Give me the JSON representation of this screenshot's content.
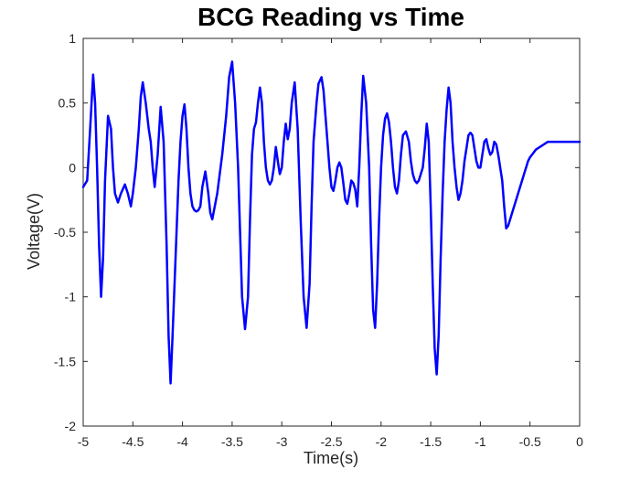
{
  "chart_data": {
    "type": "line",
    "title": "BCG Reading vs Time",
    "xlabel": "Time(s)",
    "ylabel": "Voltage(V)",
    "xlim": [
      -5,
      0
    ],
    "ylim": [
      -2,
      1
    ],
    "xticks": [
      -5,
      -4.5,
      -4,
      -3.5,
      -3,
      -2.5,
      -2,
      -1.5,
      -1,
      -0.5,
      0
    ],
    "xtick_labels": [
      "-5",
      "-4.5",
      "-4",
      "-3.5",
      "-3",
      "-2.5",
      "-2",
      "-1.5",
      "-1",
      "-0.5",
      "0"
    ],
    "yticks": [
      1,
      0.5,
      0,
      -0.5,
      -1,
      -1.5,
      -2
    ],
    "ytick_labels": [
      "1",
      "0.5",
      "0",
      "-0.5",
      "-1",
      "-1.5",
      "-2"
    ],
    "grid": false,
    "legend": "none",
    "line_color": "#0000ff",
    "series": [
      {
        "x": [
          -5.0,
          -4.96,
          -4.93,
          -4.9,
          -4.88,
          -4.86,
          -4.84,
          -4.82,
          -4.8,
          -4.78,
          -4.75,
          -4.72,
          -4.7,
          -4.68,
          -4.65,
          -4.62,
          -4.58,
          -4.55,
          -4.52,
          -4.5,
          -4.47,
          -4.44,
          -4.42,
          -4.4,
          -4.37,
          -4.34,
          -4.32,
          -4.3,
          -4.28,
          -4.25,
          -4.22,
          -4.19,
          -4.16,
          -4.14,
          -4.12,
          -4.1,
          -4.07,
          -4.04,
          -4.02,
          -4.0,
          -3.98,
          -3.96,
          -3.94,
          -3.92,
          -3.9,
          -3.88,
          -3.86,
          -3.84,
          -3.82,
          -3.8,
          -3.77,
          -3.74,
          -3.72,
          -3.7,
          -3.65,
          -3.6,
          -3.56,
          -3.53,
          -3.5,
          -3.47,
          -3.44,
          -3.42,
          -3.4,
          -3.37,
          -3.34,
          -3.32,
          -3.3,
          -3.28,
          -3.26,
          -3.24,
          -3.22,
          -3.2,
          -3.18,
          -3.16,
          -3.14,
          -3.12,
          -3.1,
          -3.08,
          -3.06,
          -3.04,
          -3.02,
          -3.0,
          -2.98,
          -2.96,
          -2.94,
          -2.92,
          -2.9,
          -2.87,
          -2.84,
          -2.81,
          -2.78,
          -2.75,
          -2.72,
          -2.7,
          -2.68,
          -2.65,
          -2.63,
          -2.6,
          -2.58,
          -2.56,
          -2.54,
          -2.52,
          -2.5,
          -2.48,
          -2.46,
          -2.44,
          -2.42,
          -2.4,
          -2.38,
          -2.36,
          -2.34,
          -2.32,
          -2.3,
          -2.28,
          -2.26,
          -2.24,
          -2.22,
          -2.2,
          -2.18,
          -2.15,
          -2.12,
          -2.1,
          -2.08,
          -2.06,
          -2.04,
          -2.02,
          -2.0,
          -1.98,
          -1.96,
          -1.94,
          -1.92,
          -1.9,
          -1.88,
          -1.86,
          -1.84,
          -1.82,
          -1.8,
          -1.78,
          -1.75,
          -1.72,
          -1.7,
          -1.68,
          -1.66,
          -1.64,
          -1.62,
          -1.6,
          -1.58,
          -1.56,
          -1.54,
          -1.52,
          -1.5,
          -1.48,
          -1.46,
          -1.44,
          -1.42,
          -1.4,
          -1.38,
          -1.36,
          -1.34,
          -1.32,
          -1.3,
          -1.28,
          -1.26,
          -1.24,
          -1.22,
          -1.2,
          -1.18,
          -1.16,
          -1.14,
          -1.12,
          -1.1,
          -1.08,
          -1.06,
          -1.04,
          -1.02,
          -1.0,
          -0.98,
          -0.96,
          -0.94,
          -0.92,
          -0.9,
          -0.88,
          -0.86,
          -0.84,
          -0.82,
          -0.8,
          -0.78,
          -0.76,
          -0.74,
          -0.72,
          -0.7,
          -0.68,
          -0.66,
          -0.64,
          -0.62,
          -0.6,
          -0.58,
          -0.56,
          -0.54,
          -0.52,
          -0.5,
          -0.48,
          -0.46,
          -0.44,
          -0.42,
          -0.4,
          -0.38,
          -0.36,
          -0.34,
          -0.32,
          -0.3,
          -0.28,
          -0.26,
          -0.24,
          -0.22,
          -0.2,
          -0.18,
          -0.16,
          -0.14,
          -0.12,
          -0.1,
          -0.08,
          -0.06,
          -0.04,
          -0.02,
          0.0
        ],
        "y": [
          -0.15,
          -0.1,
          0.3,
          0.72,
          0.5,
          0.0,
          -0.6,
          -1.0,
          -0.7,
          -0.1,
          0.4,
          0.3,
          0.0,
          -0.2,
          -0.27,
          -0.2,
          -0.13,
          -0.2,
          -0.3,
          -0.2,
          0.0,
          0.3,
          0.55,
          0.66,
          0.5,
          0.3,
          0.2,
          0.0,
          -0.15,
          0.1,
          0.47,
          0.2,
          -0.6,
          -1.3,
          -1.67,
          -1.3,
          -0.7,
          -0.1,
          0.2,
          0.4,
          0.49,
          0.3,
          0.0,
          -0.2,
          -0.3,
          -0.33,
          -0.34,
          -0.33,
          -0.3,
          -0.15,
          -0.03,
          -0.2,
          -0.35,
          -0.4,
          -0.2,
          0.1,
          0.4,
          0.7,
          0.82,
          0.5,
          0.0,
          -0.5,
          -1.0,
          -1.25,
          -1.0,
          -0.4,
          0.1,
          0.3,
          0.35,
          0.5,
          0.62,
          0.5,
          0.2,
          0.0,
          -0.1,
          -0.13,
          -0.1,
          0.0,
          0.16,
          0.05,
          -0.05,
          0.0,
          0.2,
          0.34,
          0.22,
          0.3,
          0.5,
          0.66,
          0.3,
          -0.4,
          -1.0,
          -1.24,
          -0.9,
          -0.3,
          0.2,
          0.5,
          0.65,
          0.7,
          0.6,
          0.4,
          0.2,
          0.0,
          -0.15,
          -0.18,
          -0.1,
          0.0,
          0.04,
          0.0,
          -0.12,
          -0.25,
          -0.28,
          -0.2,
          -0.1,
          -0.12,
          -0.17,
          -0.3,
          0.0,
          0.4,
          0.71,
          0.5,
          0.0,
          -0.6,
          -1.1,
          -1.24,
          -0.9,
          -0.4,
          0.0,
          0.25,
          0.38,
          0.42,
          0.35,
          0.2,
          0.0,
          -0.15,
          -0.2,
          -0.1,
          0.1,
          0.25,
          0.28,
          0.2,
          0.05,
          -0.05,
          -0.1,
          -0.12,
          -0.1,
          -0.05,
          0.0,
          0.15,
          0.34,
          0.2,
          -0.3,
          -0.9,
          -1.4,
          -1.6,
          -1.3,
          -0.7,
          -0.2,
          0.2,
          0.45,
          0.62,
          0.5,
          0.2,
          0.0,
          -0.15,
          -0.25,
          -0.2,
          -0.1,
          0.05,
          0.15,
          0.25,
          0.27,
          0.25,
          0.15,
          0.05,
          0.0,
          0.0,
          0.1,
          0.2,
          0.22,
          0.15,
          0.1,
          0.12,
          0.2,
          0.18,
          0.1,
          0.0,
          -0.1,
          -0.3,
          -0.47,
          -0.45,
          -0.4,
          -0.35,
          -0.3,
          -0.25,
          -0.2,
          -0.15,
          -0.1,
          -0.05,
          0.0,
          0.05,
          0.08,
          0.1,
          0.12,
          0.14,
          0.15,
          0.16,
          0.17,
          0.18,
          0.19,
          0.2,
          0.2,
          0.2,
          0.2,
          0.2,
          0.2,
          0.2,
          0.2,
          0.2,
          0.2,
          0.2,
          0.2,
          0.2,
          0.2,
          0.2,
          0.2,
          0.2
        ]
      }
    ]
  }
}
